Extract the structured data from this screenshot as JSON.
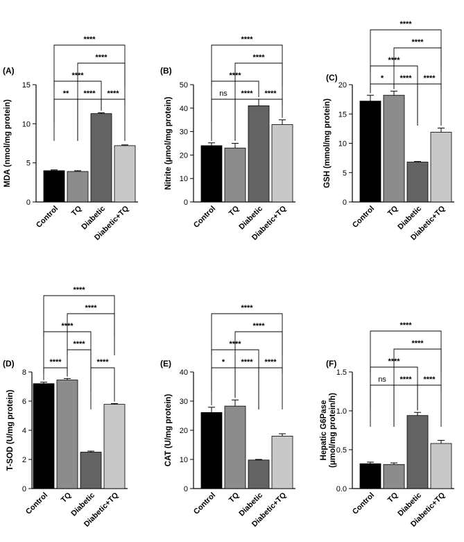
{
  "colors": [
    "#000000",
    "#8c8c8c",
    "#636363",
    "#c8c8c8"
  ],
  "chart_data": [
    {
      "panel": "(A)",
      "type": "bar",
      "categories": [
        "Control",
        "TQ",
        "Diabetic",
        "Diabetic+TQ"
      ],
      "values": [
        4.0,
        3.9,
        11.3,
        7.2
      ],
      "errors": [
        0.1,
        0.1,
        0.1,
        0.1
      ],
      "ylabel": "MDA (nmol/mg protein)",
      "ylim": [
        0,
        15
      ],
      "yticks": [
        0,
        5,
        10,
        15
      ],
      "comparisons": [
        {
          "a": 0,
          "b": 1,
          "label": "**",
          "level": 0
        },
        {
          "a": 1,
          "b": 2,
          "label": "****",
          "level": 0
        },
        {
          "a": 2,
          "b": 3,
          "label": "****",
          "level": 0
        },
        {
          "a": 0,
          "b": 2,
          "label": "****",
          "level": 1
        },
        {
          "a": 1,
          "b": 3,
          "label": "****",
          "level": 2
        },
        {
          "a": 0,
          "b": 3,
          "label": "****",
          "level": 3
        }
      ]
    },
    {
      "panel": "(B)",
      "type": "bar",
      "categories": [
        "Control",
        "TQ",
        "Diabetic",
        "Diabetic+TQ"
      ],
      "values": [
        24,
        23,
        41,
        33
      ],
      "errors": [
        1.2,
        2.0,
        2.8,
        2.0
      ],
      "ylabel": "Nitrite (μmol/mg protein)",
      "ylim": [
        0,
        50
      ],
      "yticks": [
        0,
        10,
        20,
        30,
        40,
        50
      ],
      "comparisons": [
        {
          "a": 0,
          "b": 1,
          "label": "ns",
          "level": 0
        },
        {
          "a": 1,
          "b": 2,
          "label": "****",
          "level": 0
        },
        {
          "a": 2,
          "b": 3,
          "label": "****",
          "level": 0
        },
        {
          "a": 0,
          "b": 2,
          "label": "****",
          "level": 1
        },
        {
          "a": 1,
          "b": 3,
          "label": "****",
          "level": 2
        },
        {
          "a": 0,
          "b": 3,
          "label": "****",
          "level": 3
        }
      ]
    },
    {
      "panel": "(C)",
      "type": "bar",
      "categories": [
        "Control",
        "TQ",
        "Diabetic",
        "Diabetic+TQ"
      ],
      "values": [
        17.2,
        18.2,
        6.8,
        11.9
      ],
      "errors": [
        1.0,
        0.7,
        0.1,
        0.7
      ],
      "ylabel": "GSH (mmol/mg protein)",
      "ylim": [
        0,
        20
      ],
      "yticks": [
        0,
        5,
        10,
        15,
        20
      ],
      "comparisons": [
        {
          "a": 0,
          "b": 1,
          "label": "*",
          "level": 0
        },
        {
          "a": 1,
          "b": 2,
          "label": "****",
          "level": 0
        },
        {
          "a": 2,
          "b": 3,
          "label": "****",
          "level": 0
        },
        {
          "a": 0,
          "b": 2,
          "label": "****",
          "level": 1
        },
        {
          "a": 1,
          "b": 3,
          "label": "****",
          "level": 2
        },
        {
          "a": 0,
          "b": 3,
          "label": "****",
          "level": 3
        }
      ]
    },
    {
      "panel": "(D)",
      "type": "bar",
      "categories": [
        "Control",
        "TQ",
        "Diabetic",
        "Diabetic+TQ"
      ],
      "values": [
        7.2,
        7.45,
        2.5,
        5.78
      ],
      "errors": [
        0.1,
        0.1,
        0.07,
        0.05
      ],
      "ylabel": "T-SOD (U/mg protein)",
      "ylim": [
        0,
        8
      ],
      "yticks": [
        0,
        2,
        4,
        6,
        8
      ],
      "comparisons": [
        {
          "a": 0,
          "b": 1,
          "label": "****",
          "level": 0
        },
        {
          "a": 2,
          "b": 3,
          "label": "****",
          "level": 0
        },
        {
          "a": 1,
          "b": 2,
          "label": "****",
          "level": 1
        },
        {
          "a": 0,
          "b": 2,
          "label": "****",
          "level": 2
        },
        {
          "a": 1,
          "b": 3,
          "label": "****",
          "level": 3
        },
        {
          "a": 0,
          "b": 3,
          "label": "****",
          "level": 4
        }
      ]
    },
    {
      "panel": "(E)",
      "type": "bar",
      "categories": [
        "Control",
        "TQ",
        "Diabetic",
        "Diabetic+TQ"
      ],
      "values": [
        26.1,
        28.3,
        9.8,
        18.0
      ],
      "errors": [
        1.8,
        2.1,
        0.2,
        0.8
      ],
      "ylabel": "CAT (U/mg protein)",
      "ylim": [
        0,
        40
      ],
      "yticks": [
        0,
        10,
        20,
        30,
        40
      ],
      "comparisons": [
        {
          "a": 0,
          "b": 1,
          "label": "*",
          "level": 0
        },
        {
          "a": 1,
          "b": 2,
          "label": "****",
          "level": 0
        },
        {
          "a": 2,
          "b": 3,
          "label": "****",
          "level": 0
        },
        {
          "a": 0,
          "b": 2,
          "label": "****",
          "level": 1
        },
        {
          "a": 1,
          "b": 3,
          "label": "****",
          "level": 2
        },
        {
          "a": 0,
          "b": 3,
          "label": "****",
          "level": 3
        }
      ]
    },
    {
      "panel": "(F)",
      "type": "bar",
      "categories": [
        "Control",
        "TQ",
        "Diabetic",
        "Diabetic+TQ"
      ],
      "values": [
        0.32,
        0.31,
        0.94,
        0.58
      ],
      "errors": [
        0.02,
        0.02,
        0.04,
        0.04
      ],
      "ylabel": [
        "Hepatic G6Pase",
        "(μmol/mg protein/h)"
      ],
      "ylim": [
        0,
        1.5
      ],
      "yticks": [
        "0.0",
        "0.5",
        "1.0",
        "1.5"
      ],
      "comparisons": [
        {
          "a": 0,
          "b": 1,
          "label": "ns",
          "level": 0
        },
        {
          "a": 1,
          "b": 2,
          "label": "****",
          "level": 0
        },
        {
          "a": 2,
          "b": 3,
          "label": "****",
          "level": 0
        },
        {
          "a": 0,
          "b": 2,
          "label": "****",
          "level": 1
        },
        {
          "a": 1,
          "b": 3,
          "label": "****",
          "level": 2
        },
        {
          "a": 0,
          "b": 3,
          "label": "****",
          "level": 3
        }
      ]
    }
  ]
}
